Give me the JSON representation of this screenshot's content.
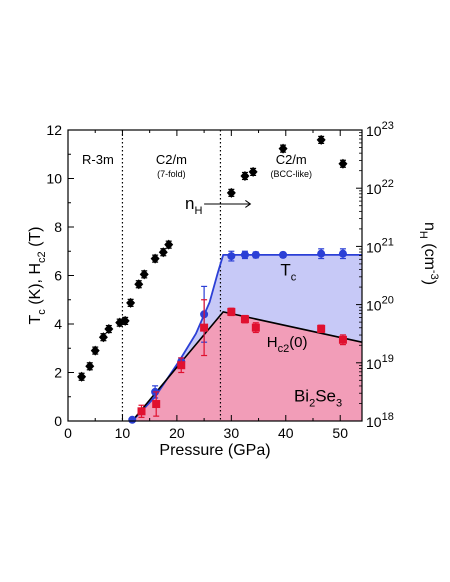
{
  "chart_data": {
    "type": "scatter",
    "xlabel": "Pressure (GPa)",
    "x_ticks": [
      0,
      10,
      20,
      30,
      40,
      50
    ],
    "xlim": [
      0,
      54
    ],
    "ylabel_left": {
      "main1": "T",
      "sub1": "c",
      "main2": " (K), H",
      "sub2": "c2",
      "main3": " (T)"
    },
    "ylim_left": [
      0,
      12
    ],
    "y_ticks_left": [
      0,
      2,
      4,
      6,
      8,
      10,
      12
    ],
    "ylabel_right": {
      "main1": "n",
      "sub1": "H",
      "main2": " (cm",
      "sup": "-3",
      "main3": ")"
    },
    "ylim_right_exponent": [
      18,
      23
    ],
    "y_ticks_right": [
      {
        "base": "10",
        "exp": "18"
      },
      {
        "base": "10",
        "exp": "19"
      },
      {
        "base": "10",
        "exp": "20"
      },
      {
        "base": "10",
        "exp": "21"
      },
      {
        "base": "10",
        "exp": "22"
      },
      {
        "base": "10",
        "exp": "23"
      }
    ],
    "phase_boundaries": [
      10,
      28
    ],
    "phases": [
      {
        "name": "R-3m",
        "sub": "",
        "x": 5.5
      },
      {
        "name": "C2/m",
        "sub": "(7-fold)",
        "x": 19
      },
      {
        "name": "C2/m",
        "sub": "(BCC-like)",
        "x": 41
      }
    ],
    "annotations": {
      "nh": {
        "main": "n",
        "sub": "H"
      },
      "tc": {
        "main": "T",
        "sub": "c"
      },
      "hc2": {
        "main": "H",
        "sub": "c2",
        "tail": "(0)"
      },
      "material": {
        "p1": "Bi",
        "s1": "2",
        "p2": "Se",
        "s2": "3"
      }
    },
    "colors": {
      "nh": "#000000",
      "tc": "#2b3fd6",
      "hc2": "#e0102f",
      "tc_fill": "#c7c9f7",
      "hc2_fill": "#f29db8"
    },
    "series": [
      {
        "key": "nh",
        "axis": "right_log10",
        "marker": "diamond",
        "points": [
          {
            "x": 2.5,
            "y": 18.76,
            "err": 0.06
          },
          {
            "x": 4.0,
            "y": 18.94,
            "err": 0.06
          },
          {
            "x": 5.0,
            "y": 19.21,
            "err": 0.06
          },
          {
            "x": 6.5,
            "y": 19.44,
            "err": 0.06
          },
          {
            "x": 7.5,
            "y": 19.58,
            "err": 0.06
          },
          {
            "x": 9.5,
            "y": 19.69,
            "err": 0.06
          },
          {
            "x": 10.5,
            "y": 19.72,
            "err": 0.06
          },
          {
            "x": 11.5,
            "y": 20.03,
            "err": 0.06
          },
          {
            "x": 13.0,
            "y": 20.35,
            "err": 0.06
          },
          {
            "x": 14.0,
            "y": 20.52,
            "err": 0.06
          },
          {
            "x": 16.0,
            "y": 20.79,
            "err": 0.06
          },
          {
            "x": 17.5,
            "y": 20.9,
            "err": 0.06
          },
          {
            "x": 18.5,
            "y": 21.03,
            "err": 0.06
          },
          {
            "x": 30.0,
            "y": 21.92,
            "err": 0.06
          },
          {
            "x": 32.5,
            "y": 22.21,
            "err": 0.06
          },
          {
            "x": 34.0,
            "y": 22.28,
            "err": 0.06
          },
          {
            "x": 39.5,
            "y": 22.68,
            "err": 0.06
          },
          {
            "x": 46.5,
            "y": 22.83,
            "err": 0.06
          },
          {
            "x": 50.5,
            "y": 22.42,
            "err": 0.06
          }
        ]
      },
      {
        "key": "tc",
        "axis": "left",
        "marker": "circle",
        "points": [
          {
            "x": 11.8,
            "y": 0.05,
            "err": 0
          },
          {
            "x": 16.0,
            "y": 1.2,
            "err": 0.25
          },
          {
            "x": 20.8,
            "y": 2.45,
            "err": 0.15
          },
          {
            "x": 25.0,
            "y": 4.4,
            "err": 1.15
          },
          {
            "x": 30.0,
            "y": 6.8,
            "err": 0.2
          },
          {
            "x": 32.5,
            "y": 6.85,
            "err": 0.15
          },
          {
            "x": 34.5,
            "y": 6.85,
            "err": 0.12
          },
          {
            "x": 39.5,
            "y": 6.85,
            "err": 0.1
          },
          {
            "x": 46.5,
            "y": 6.9,
            "err": 0.2
          },
          {
            "x": 50.5,
            "y": 6.9,
            "err": 0.2
          }
        ]
      },
      {
        "key": "hc2",
        "axis": "left",
        "marker": "square",
        "points": [
          {
            "x": 13.5,
            "y": 0.4,
            "err": 0.25
          },
          {
            "x": 16.2,
            "y": 0.7,
            "err": 0.5
          },
          {
            "x": 20.8,
            "y": 2.3,
            "err": 0.3
          },
          {
            "x": 25.0,
            "y": 3.85,
            "err": 1.15
          },
          {
            "x": 30.0,
            "y": 4.5,
            "err": 0.15
          },
          {
            "x": 32.5,
            "y": 4.2,
            "err": 0.15
          },
          {
            "x": 34.5,
            "y": 3.85,
            "err": 0.2
          },
          {
            "x": 46.5,
            "y": 3.8,
            "err": 0.15
          },
          {
            "x": 50.5,
            "y": 3.35,
            "err": 0.2
          }
        ]
      }
    ],
    "tc_curve": [
      [
        11.8,
        0
      ],
      [
        16,
        1.0
      ],
      [
        20.5,
        2.5
      ],
      [
        23.5,
        3.6
      ],
      [
        26,
        4.9
      ],
      [
        27.5,
        6.1
      ],
      [
        28.5,
        6.85
      ],
      [
        54,
        6.85
      ]
    ],
    "hc2_curve": [
      [
        11.8,
        0
      ],
      [
        20.5,
        2.35
      ],
      [
        28.5,
        4.5
      ],
      [
        54,
        3.25
      ]
    ]
  }
}
